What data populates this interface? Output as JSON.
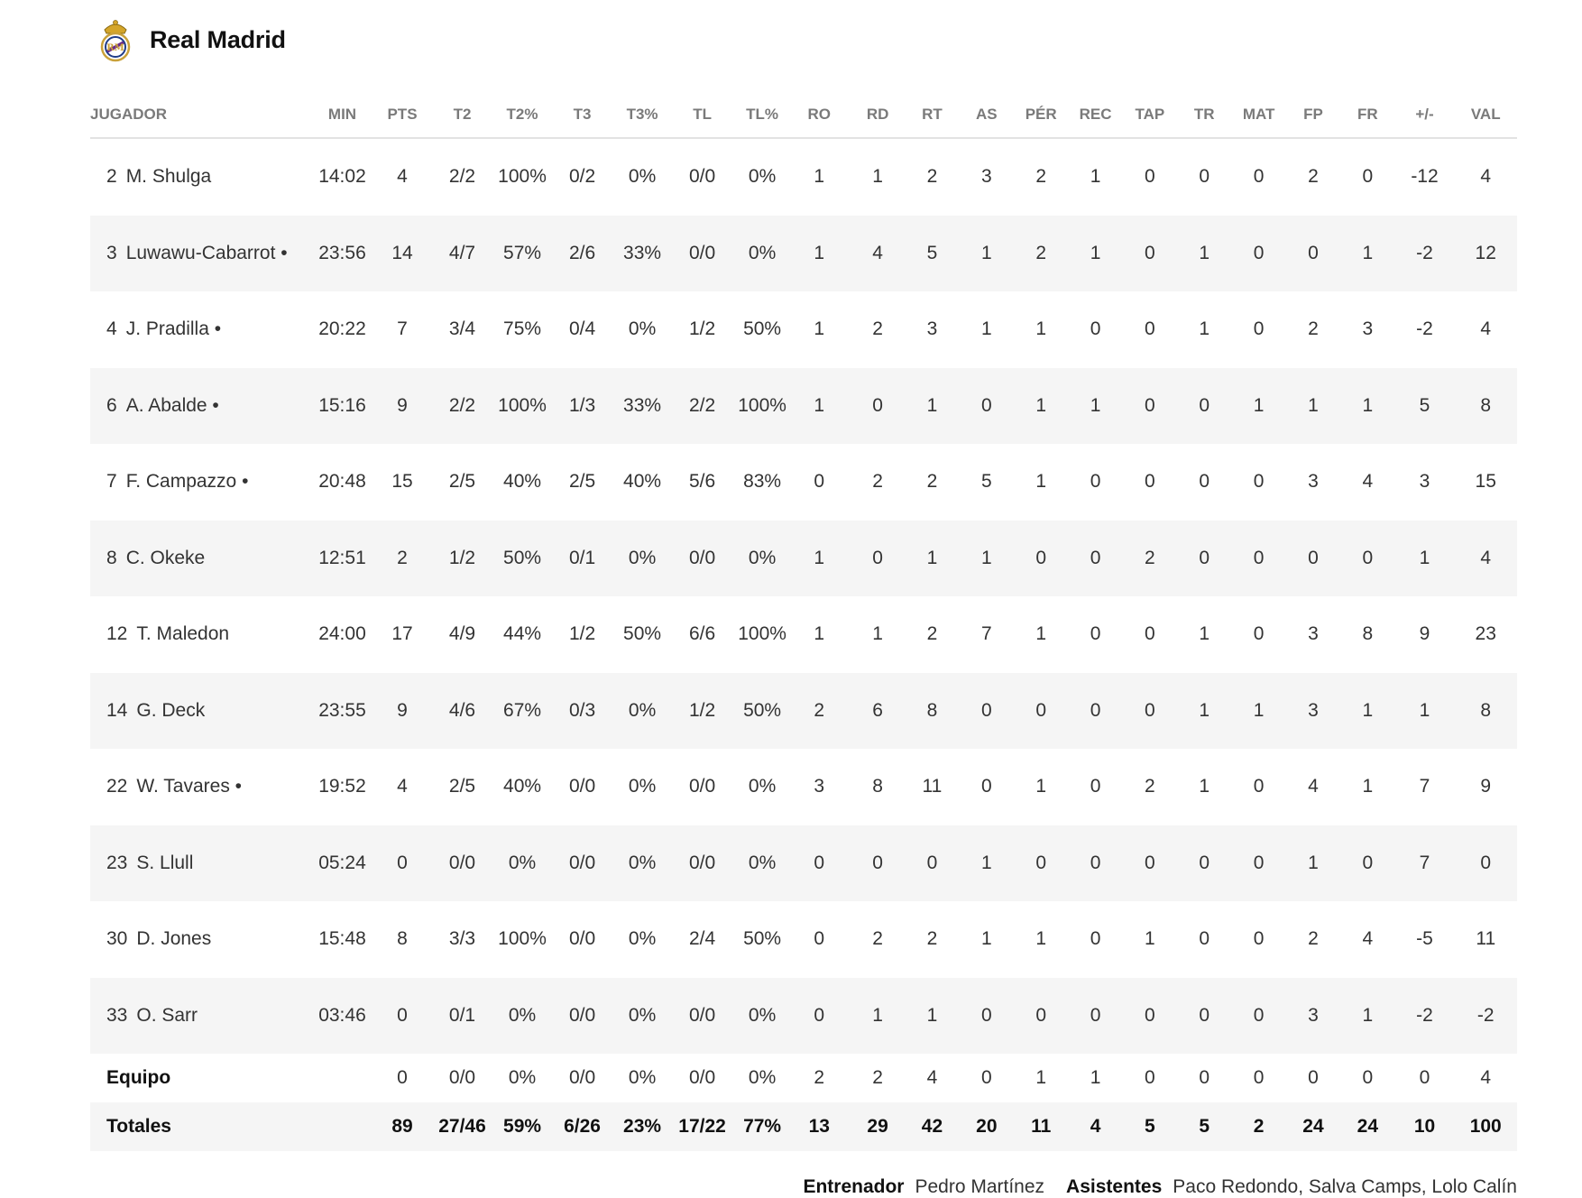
{
  "team": {
    "name": "Real Madrid",
    "crest_icon": "real-madrid-crest-icon"
  },
  "headers": {
    "player": "JUGADOR",
    "min": "MIN",
    "pts": "PTS",
    "t2": "T2",
    "t2p": "T2%",
    "t3": "T3",
    "t3p": "T3%",
    "tl": "TL",
    "tlp": "TL%",
    "ro": "RO",
    "rd": "RD",
    "rt": "RT",
    "as": "AS",
    "per": "PÉR",
    "rec": "REC",
    "tap": "TAP",
    "tr": "TR",
    "mat": "MAT",
    "fp": "FP",
    "fr": "FR",
    "pm": "+/-",
    "val": "VAL"
  },
  "players": [
    {
      "num": "2",
      "name": "M. Shulga",
      "min": "14:02",
      "pts": "4",
      "t2": "2/2",
      "t2p": "100%",
      "t3": "0/2",
      "t3p": "0%",
      "tl": "0/0",
      "tlp": "0%",
      "ro": "1",
      "rd": "1",
      "rt": "2",
      "as": "3",
      "per": "2",
      "rec": "1",
      "tap": "0",
      "tr": "0",
      "mat": "0",
      "fp": "2",
      "fr": "0",
      "pm": "-12",
      "val": "4"
    },
    {
      "num": "3",
      "name": "Luwawu-Cabarrot •",
      "min": "23:56",
      "pts": "14",
      "t2": "4/7",
      "t2p": "57%",
      "t3": "2/6",
      "t3p": "33%",
      "tl": "0/0",
      "tlp": "0%",
      "ro": "1",
      "rd": "4",
      "rt": "5",
      "as": "1",
      "per": "2",
      "rec": "1",
      "tap": "0",
      "tr": "1",
      "mat": "0",
      "fp": "0",
      "fr": "1",
      "pm": "-2",
      "val": "12"
    },
    {
      "num": "4",
      "name": "J. Pradilla •",
      "min": "20:22",
      "pts": "7",
      "t2": "3/4",
      "t2p": "75%",
      "t3": "0/4",
      "t3p": "0%",
      "tl": "1/2",
      "tlp": "50%",
      "ro": "1",
      "rd": "2",
      "rt": "3",
      "as": "1",
      "per": "1",
      "rec": "0",
      "tap": "0",
      "tr": "1",
      "mat": "0",
      "fp": "2",
      "fr": "3",
      "pm": "-2",
      "val": "4"
    },
    {
      "num": "6",
      "name": "A. Abalde •",
      "min": "15:16",
      "pts": "9",
      "t2": "2/2",
      "t2p": "100%",
      "t3": "1/3",
      "t3p": "33%",
      "tl": "2/2",
      "tlp": "100%",
      "ro": "1",
      "rd": "0",
      "rt": "1",
      "as": "0",
      "per": "1",
      "rec": "1",
      "tap": "0",
      "tr": "0",
      "mat": "1",
      "fp": "1",
      "fr": "1",
      "pm": "5",
      "val": "8"
    },
    {
      "num": "7",
      "name": "F. Campazzo •",
      "min": "20:48",
      "pts": "15",
      "t2": "2/5",
      "t2p": "40%",
      "t3": "2/5",
      "t3p": "40%",
      "tl": "5/6",
      "tlp": "83%",
      "ro": "0",
      "rd": "2",
      "rt": "2",
      "as": "5",
      "per": "1",
      "rec": "0",
      "tap": "0",
      "tr": "0",
      "mat": "0",
      "fp": "3",
      "fr": "4",
      "pm": "3",
      "val": "15"
    },
    {
      "num": "8",
      "name": "C. Okeke",
      "min": "12:51",
      "pts": "2",
      "t2": "1/2",
      "t2p": "50%",
      "t3": "0/1",
      "t3p": "0%",
      "tl": "0/0",
      "tlp": "0%",
      "ro": "1",
      "rd": "0",
      "rt": "1",
      "as": "1",
      "per": "0",
      "rec": "0",
      "tap": "2",
      "tr": "0",
      "mat": "0",
      "fp": "0",
      "fr": "0",
      "pm": "1",
      "val": "4"
    },
    {
      "num": "12",
      "name": "T. Maledon",
      "min": "24:00",
      "pts": "17",
      "t2": "4/9",
      "t2p": "44%",
      "t3": "1/2",
      "t3p": "50%",
      "tl": "6/6",
      "tlp": "100%",
      "ro": "1",
      "rd": "1",
      "rt": "2",
      "as": "7",
      "per": "1",
      "rec": "0",
      "tap": "0",
      "tr": "1",
      "mat": "0",
      "fp": "3",
      "fr": "8",
      "pm": "9",
      "val": "23"
    },
    {
      "num": "14",
      "name": "G. Deck",
      "min": "23:55",
      "pts": "9",
      "t2": "4/6",
      "t2p": "67%",
      "t3": "0/3",
      "t3p": "0%",
      "tl": "1/2",
      "tlp": "50%",
      "ro": "2",
      "rd": "6",
      "rt": "8",
      "as": "0",
      "per": "0",
      "rec": "0",
      "tap": "0",
      "tr": "1",
      "mat": "1",
      "fp": "3",
      "fr": "1",
      "pm": "1",
      "val": "8"
    },
    {
      "num": "22",
      "name": "W. Tavares •",
      "min": "19:52",
      "pts": "4",
      "t2": "2/5",
      "t2p": "40%",
      "t3": "0/0",
      "t3p": "0%",
      "tl": "0/0",
      "tlp": "0%",
      "ro": "3",
      "rd": "8",
      "rt": "11",
      "as": "0",
      "per": "1",
      "rec": "0",
      "tap": "2",
      "tr": "1",
      "mat": "0",
      "fp": "4",
      "fr": "1",
      "pm": "7",
      "val": "9"
    },
    {
      "num": "23",
      "name": "S. Llull",
      "min": "05:24",
      "pts": "0",
      "t2": "0/0",
      "t2p": "0%",
      "t3": "0/0",
      "t3p": "0%",
      "tl": "0/0",
      "tlp": "0%",
      "ro": "0",
      "rd": "0",
      "rt": "0",
      "as": "1",
      "per": "0",
      "rec": "0",
      "tap": "0",
      "tr": "0",
      "mat": "0",
      "fp": "1",
      "fr": "0",
      "pm": "7",
      "val": "0"
    },
    {
      "num": "30",
      "name": "D. Jones",
      "min": "15:48",
      "pts": "8",
      "t2": "3/3",
      "t2p": "100%",
      "t3": "0/0",
      "t3p": "0%",
      "tl": "2/4",
      "tlp": "50%",
      "ro": "0",
      "rd": "2",
      "rt": "2",
      "as": "1",
      "per": "1",
      "rec": "0",
      "tap": "1",
      "tr": "0",
      "mat": "0",
      "fp": "2",
      "fr": "4",
      "pm": "-5",
      "val": "11"
    },
    {
      "num": "33",
      "name": "O. Sarr",
      "min": "03:46",
      "pts": "0",
      "t2": "0/1",
      "t2p": "0%",
      "t3": "0/0",
      "t3p": "0%",
      "tl": "0/0",
      "tlp": "0%",
      "ro": "0",
      "rd": "1",
      "rt": "1",
      "as": "0",
      "per": "0",
      "rec": "0",
      "tap": "0",
      "tr": "0",
      "mat": "0",
      "fp": "3",
      "fr": "1",
      "pm": "-2",
      "val": "-2"
    }
  ],
  "team_row": {
    "label": "Equipo",
    "min": "",
    "pts": "0",
    "t2": "0/0",
    "t2p": "0%",
    "t3": "0/0",
    "t3p": "0%",
    "tl": "0/0",
    "tlp": "0%",
    "ro": "2",
    "rd": "2",
    "rt": "4",
    "as": "0",
    "per": "1",
    "rec": "1",
    "tap": "0",
    "tr": "0",
    "mat": "0",
    "fp": "0",
    "fr": "0",
    "pm": "0",
    "val": "4"
  },
  "totals_row": {
    "label": "Totales",
    "min": "",
    "pts": "89",
    "t2": "27/46",
    "t2p": "59%",
    "t3": "6/26",
    "t3p": "23%",
    "tl": "17/22",
    "tlp": "77%",
    "ro": "13",
    "rd": "29",
    "rt": "42",
    "as": "20",
    "per": "11",
    "rec": "4",
    "tap": "5",
    "tr": "5",
    "mat": "2",
    "fp": "24",
    "fr": "24",
    "pm": "10",
    "val": "100"
  },
  "staff": {
    "coach_label": "Entrenador",
    "coach": "Pedro Martínez",
    "assistants_label": "Asistentes",
    "assistants": "Paco Redondo, Salva Camps, Lolo Calín"
  }
}
